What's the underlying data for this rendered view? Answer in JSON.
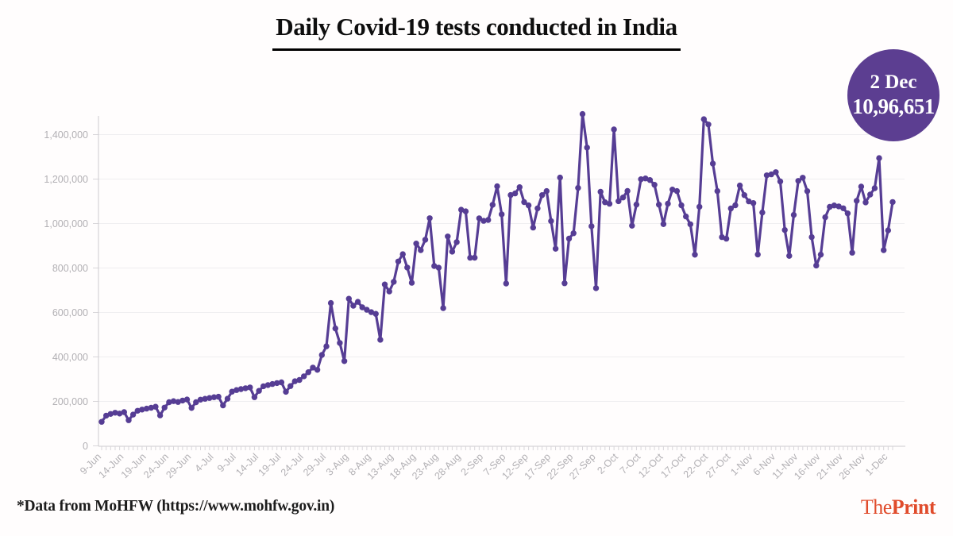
{
  "title": "Daily Covid-19 tests conducted in India",
  "badge": {
    "date": "2 Dec",
    "value": "10,96,651",
    "color": "#5c3e91"
  },
  "footer": {
    "source": "*Data from MoHFW (https://www.mohfw.gov.in)"
  },
  "logo": {
    "the": "The",
    "print": "Print",
    "color": "#e04b2b"
  },
  "chart_data": {
    "type": "line",
    "title": "Daily Covid-19 tests conducted in India",
    "xlabel": "",
    "ylabel": "",
    "legend": "none",
    "grid": true,
    "ylim": [
      0,
      1500000
    ],
    "y_ticks": [
      0,
      200000,
      400000,
      600000,
      800000,
      1000000,
      1200000,
      1400000
    ],
    "x_tick_every": 5,
    "x_tick_labels": [
      "9-Jun",
      "14-Jun",
      "19-Jun",
      "24-Jun",
      "29-Jun",
      "4-Jul",
      "9-Jul",
      "14-Jul",
      "19-Jul",
      "24-Jul",
      "29-Jul",
      "3-Aug",
      "8-Aug",
      "13-Aug",
      "18-Aug",
      "23-Aug",
      "28-Aug",
      "2-Sep",
      "7-Sep",
      "12-Sep",
      "17-Sep",
      "22-Sep",
      "27-Sep",
      "2-Oct",
      "7-Oct",
      "12-Oct",
      "17-Oct",
      "22-Oct",
      "27-Oct",
      "1-Nov",
      "6-Nov",
      "11-Nov",
      "16-Nov",
      "21-Nov",
      "26-Nov",
      "1-Dec"
    ],
    "line_color": "#563d94",
    "grid_color": "#efeef0",
    "axis_color": "#cdcbcf",
    "tick_color": "#d8d6da",
    "label_color": "#b2b0b4",
    "dates": [
      "9-Jun",
      "10-Jun",
      "11-Jun",
      "12-Jun",
      "13-Jun",
      "14-Jun",
      "15-Jun",
      "16-Jun",
      "17-Jun",
      "18-Jun",
      "19-Jun",
      "20-Jun",
      "21-Jun",
      "22-Jun",
      "23-Jun",
      "24-Jun",
      "25-Jun",
      "26-Jun",
      "27-Jun",
      "28-Jun",
      "29-Jun",
      "30-Jun",
      "1-Jul",
      "2-Jul",
      "3-Jul",
      "4-Jul",
      "5-Jul",
      "6-Jul",
      "7-Jul",
      "8-Jul",
      "9-Jul",
      "10-Jul",
      "11-Jul",
      "12-Jul",
      "13-Jul",
      "14-Jul",
      "15-Jul",
      "16-Jul",
      "17-Jul",
      "18-Jul",
      "19-Jul",
      "20-Jul",
      "21-Jul",
      "22-Jul",
      "23-Jul",
      "24-Jul",
      "25-Jul",
      "26-Jul",
      "27-Jul",
      "28-Jul",
      "29-Jul",
      "30-Jul",
      "31-Jul",
      "1-Aug",
      "2-Aug",
      "3-Aug",
      "4-Aug",
      "5-Aug",
      "6-Aug",
      "7-Aug",
      "8-Aug",
      "9-Aug",
      "10-Aug",
      "11-Aug",
      "12-Aug",
      "13-Aug",
      "14-Aug",
      "15-Aug",
      "16-Aug",
      "17-Aug",
      "18-Aug",
      "19-Aug",
      "20-Aug",
      "21-Aug",
      "22-Aug",
      "23-Aug",
      "24-Aug",
      "25-Aug",
      "26-Aug",
      "27-Aug",
      "28-Aug",
      "29-Aug",
      "30-Aug",
      "31-Aug",
      "1-Sep",
      "2-Sep",
      "3-Sep",
      "4-Sep",
      "5-Sep",
      "6-Sep",
      "7-Sep",
      "8-Sep",
      "9-Sep",
      "10-Sep",
      "11-Sep",
      "12-Sep",
      "13-Sep",
      "14-Sep",
      "15-Sep",
      "16-Sep",
      "17-Sep",
      "18-Sep",
      "19-Sep",
      "20-Sep",
      "21-Sep",
      "22-Sep",
      "23-Sep",
      "24-Sep",
      "25-Sep",
      "26-Sep",
      "27-Sep",
      "28-Sep",
      "29-Sep",
      "30-Sep",
      "1-Oct",
      "2-Oct",
      "3-Oct",
      "4-Oct",
      "5-Oct",
      "6-Oct",
      "7-Oct",
      "8-Oct",
      "9-Oct",
      "10-Oct",
      "11-Oct",
      "12-Oct",
      "13-Oct",
      "14-Oct",
      "15-Oct",
      "16-Oct",
      "17-Oct",
      "18-Oct",
      "19-Oct",
      "20-Oct",
      "21-Oct",
      "22-Oct",
      "23-Oct",
      "24-Oct",
      "25-Oct",
      "26-Oct",
      "27-Oct",
      "28-Oct",
      "29-Oct",
      "30-Oct",
      "31-Oct",
      "1-Nov",
      "2-Nov",
      "3-Nov",
      "4-Nov",
      "5-Nov",
      "6-Nov",
      "7-Nov",
      "8-Nov",
      "9-Nov",
      "10-Nov",
      "11-Nov",
      "12-Nov",
      "13-Nov",
      "14-Nov",
      "15-Nov",
      "16-Nov",
      "17-Nov",
      "18-Nov",
      "19-Nov",
      "20-Nov",
      "21-Nov",
      "22-Nov",
      "23-Nov",
      "24-Nov",
      "25-Nov",
      "26-Nov",
      "27-Nov",
      "28-Nov",
      "29-Nov",
      "30-Nov",
      "1-Dec",
      "2-Dec"
    ],
    "values": [
      108048,
      136000,
      143700,
      149000,
      145500,
      151800,
      115519,
      140600,
      158000,
      163200,
      167400,
      171600,
      176100,
      137200,
      172300,
      196500,
      201000,
      197400,
      204000,
      208500,
      170500,
      196600,
      207800,
      211900,
      215400,
      218900,
      221100,
      182100,
      212300,
      244000,
      251100,
      255400,
      259200,
      262700,
      219100,
      247400,
      268300,
      273600,
      278200,
      282500,
      285700,
      243200,
      268900,
      290800,
      296300,
      312900,
      331400,
      352000,
      341800,
      408900,
      447800,
      642588,
      528100,
      463000,
      381027,
      661892,
      630400,
      648000,
      623100,
      612300,
      601400,
      594000,
      477023,
      726200,
      694700,
      737800,
      829300,
      862100,
      802000,
      733400,
      909900,
      880300,
      927200,
      1023836,
      809000,
      801500,
      619600,
      941700,
      873500,
      916300,
      1062000,
      1055000,
      845900,
      846278,
      1023400,
      1012300,
      1015900,
      1084200,
      1167600,
      1041300,
      730300,
      1128100,
      1135400,
      1163500,
      1096300,
      1081900,
      981800,
      1068100,
      1127900,
      1146000,
      1011200,
      886300,
      1206800,
      731500,
      932200,
      956500,
      1160200,
      1492409,
      1341535,
      987900,
      709394,
      1142800,
      1095700,
      1089100,
      1423100,
      1100300,
      1117100,
      1146300,
      989900,
      1085300,
      1199400,
      1202900,
      1195600,
      1174300,
      1085100,
      997100,
      1089300,
      1152700,
      1145900,
      1082200,
      1031700,
      996900,
      859800,
      1075400,
      1469400,
      1445200,
      1269800,
      1145900,
      938900,
      931700,
      1067900,
      1082000,
      1170900,
      1127800,
      1099800,
      1092100,
      860600,
      1049800,
      1216800,
      1221200,
      1231000,
      1189200,
      971000,
      854300,
      1039100,
      1191700,
      1205900,
      1145700,
      938800,
      810900,
      860500,
      1028200,
      1075100,
      1081600,
      1077300,
      1068400,
      1045700,
      869000,
      1102200,
      1165900,
      1094900,
      1130300,
      1159000,
      1294300,
      880200,
      969300,
      1096651
    ]
  }
}
